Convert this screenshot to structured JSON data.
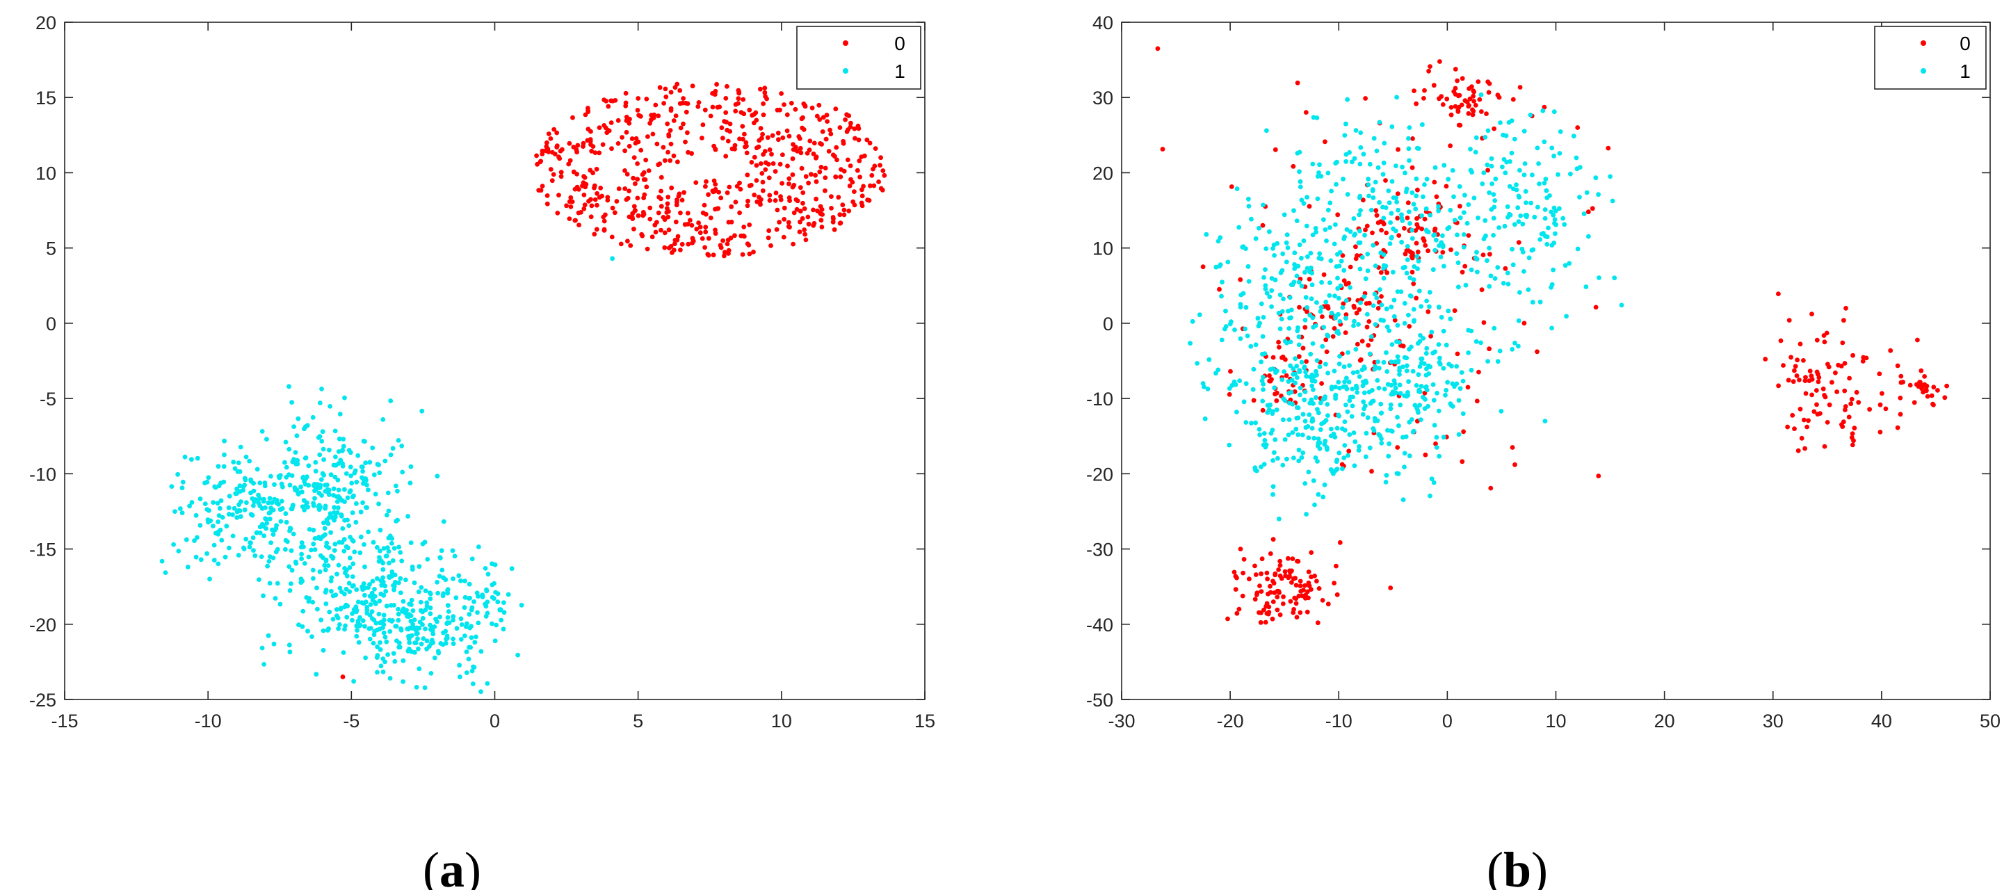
{
  "chart_data": [
    {
      "type": "scatter",
      "caption": {
        "open": "(",
        "letter": "a",
        "close": ")"
      },
      "xlim": [
        -15,
        15
      ],
      "ylim": [
        -25,
        20
      ],
      "xticks": [
        -15,
        -10,
        -5,
        0,
        5,
        10,
        15
      ],
      "yticks": [
        -25,
        -20,
        -15,
        -10,
        -5,
        0,
        5,
        10,
        15,
        20
      ],
      "grid": false,
      "legend": "top-right",
      "series": [
        {
          "name": "0",
          "color": "#ff0000",
          "clusters": [
            {
              "shape": "ring",
              "center": [
                7.5,
                10.2
              ],
              "rx_min": 1.0,
              "rx_max": 6.2,
              "ry_min": 0.5,
              "ry_max": 5.8,
              "n": 650
            }
          ],
          "points": [
            [
              -5.3,
              -23.5
            ]
          ]
        },
        {
          "name": "1",
          "color": "#00e5ee",
          "clusters": [
            {
              "shape": "blob",
              "center": [
                -8.5,
                -12.2
              ],
              "sx": 1.4,
              "sy": 2.1,
              "n": 220
            },
            {
              "shape": "blob",
              "center": [
                -5.5,
                -11.5
              ],
              "sx": 1.2,
              "sy": 2.8,
              "n": 220
            },
            {
              "shape": "blob",
              "center": [
                -4.2,
                -18.5
              ],
              "sx": 1.6,
              "sy": 2.6,
              "n": 300
            },
            {
              "shape": "blob",
              "center": [
                -2.0,
                -20.5
              ],
              "sx": 1.0,
              "sy": 1.6,
              "n": 110
            },
            {
              "shape": "blob",
              "center": [
                -0.2,
                -18.6
              ],
              "sx": 0.45,
              "sy": 0.9,
              "n": 35
            }
          ],
          "points": [
            [
              4.1,
              4.3
            ],
            [
              -6.0,
              -7.2
            ],
            [
              -3.9,
              -6.4
            ],
            [
              -10.9,
              -12.6
            ],
            [
              -10.7,
              -16.2
            ],
            [
              0.6,
              -16.3
            ]
          ]
        }
      ]
    },
    {
      "type": "scatter",
      "caption": {
        "open": "(",
        "letter": "b",
        "close": ")"
      },
      "xlim": [
        -30,
        50
      ],
      "ylim": [
        -50,
        40
      ],
      "xticks": [
        -30,
        -20,
        -10,
        0,
        10,
        20,
        30,
        40,
        50
      ],
      "yticks": [
        -50,
        -40,
        -30,
        -20,
        -10,
        0,
        10,
        20,
        30,
        40
      ],
      "grid": false,
      "legend": "top-right",
      "series": [
        {
          "name": "0",
          "color": "#ff0000",
          "clusters": [
            {
              "shape": "blob",
              "center": [
                2.0,
                30.0
              ],
              "sx": 2.2,
              "sy": 2.0,
              "n": 55
            },
            {
              "shape": "blob",
              "center": [
                -4.0,
                12.0
              ],
              "sx": 2.6,
              "sy": 3.5,
              "n": 60
            },
            {
              "shape": "blob",
              "center": [
                -10.0,
                0.0
              ],
              "sx": 2.2,
              "sy": 3.5,
              "n": 55
            },
            {
              "shape": "blob",
              "center": [
                -15.5,
                -8.0
              ],
              "sx": 1.4,
              "sy": 2.2,
              "n": 30
            },
            {
              "shape": "blob",
              "center": [
                -15.0,
                -35.5
              ],
              "sx": 2.6,
              "sy": 2.8,
              "n": 110
            },
            {
              "shape": "blob",
              "center": [
                35.5,
                -8.5
              ],
              "sx": 3.2,
              "sy": 3.8,
              "n": 100
            },
            {
              "shape": "blob",
              "center": [
                44.0,
                -9.0
              ],
              "sx": 1.1,
              "sy": 1.4,
              "n": 25
            },
            {
              "shape": "blob",
              "center": [
                -5.0,
                5.0
              ],
              "sx": 8.0,
              "sy": 14.0,
              "n": 120
            }
          ],
          "points": [
            [
              -22.5,
              7.5
            ],
            [
              -21.0,
              4.5
            ],
            [
              13.0,
              14.8
            ],
            [
              12.0,
              26.0
            ],
            [
              6.0,
              -16.5
            ],
            [
              -17.0,
              13.0
            ]
          ]
        },
        {
          "name": "1",
          "color": "#00e5ee",
          "clusters": [
            {
              "shape": "blob",
              "center": [
                -12.0,
                -12.0
              ],
              "sx": 4.0,
              "sy": 5.5,
              "n": 250
            },
            {
              "shape": "blob",
              "center": [
                -3.0,
                -8.0
              ],
              "sx": 3.5,
              "sy": 5.0,
              "n": 180
            },
            {
              "shape": "blob",
              "center": [
                -6.0,
                12.0
              ],
              "sx": 6.5,
              "sy": 7.5,
              "n": 330
            },
            {
              "shape": "blob",
              "center": [
                8.0,
                15.0
              ],
              "sx": 3.2,
              "sy": 6.0,
              "n": 130
            },
            {
              "shape": "blob",
              "center": [
                -16.0,
                2.0
              ],
              "sx": 3.0,
              "sy": 5.0,
              "n": 90
            }
          ],
          "points": [
            [
              -22.5,
              -8.0
            ],
            [
              -22.3,
              -12.7
            ],
            [
              -22.2,
              11.8
            ],
            [
              15.0,
              19.5
            ],
            [
              -15.5,
              -26.0
            ],
            [
              -4.5,
              -20.0
            ],
            [
              9.0,
              -13.0
            ]
          ]
        }
      ]
    }
  ]
}
